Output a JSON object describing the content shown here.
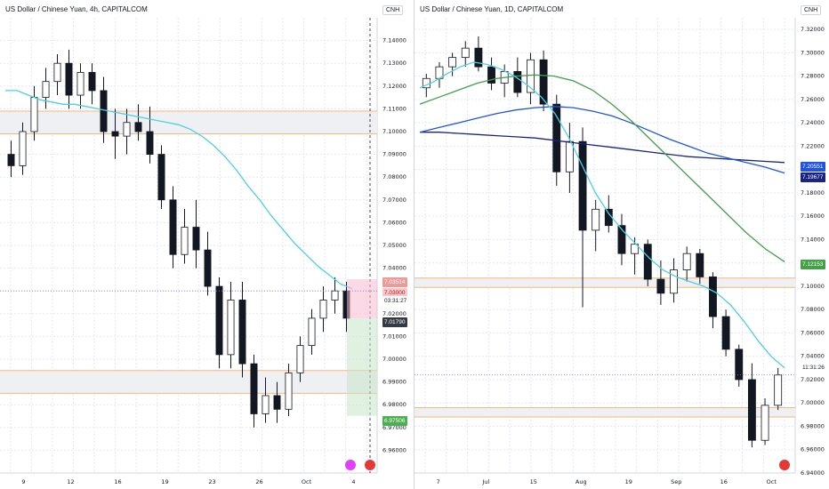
{
  "chart_data": [
    {
      "type": "candlestick",
      "title": "US Dollar / Chinese Yuan, 4h, CAPITALCOM",
      "symbol": "CNH",
      "ylim": [
        6.95,
        7.15
      ],
      "yticks": [
        "7.14000",
        "7.13000",
        "7.12000",
        "7.11000",
        "7.10000",
        "7.09000",
        "7.08000",
        "7.07000",
        "7.06000",
        "7.05000",
        "7.04000",
        "7.03000",
        "7.02000",
        "7.01000",
        "7.00000",
        "6.99000",
        "6.98000",
        "6.97000",
        "6.96000"
      ],
      "xticks": [
        "9",
        "12",
        "16",
        "19",
        "23",
        "26",
        "Oct",
        "4"
      ],
      "badges": {
        "red_price": "7.03514",
        "pink_price": "7.03000",
        "time": "03:31:27",
        "dark_price": "7.01790",
        "green_price": "6.97506"
      },
      "zones": [
        {
          "from": 7.099,
          "to": 7.109
        },
        {
          "from": 6.985,
          "to": 6.995
        }
      ],
      "ma": [
        7.118,
        7.118,
        7.116,
        7.114,
        7.113,
        7.112,
        7.112,
        7.111,
        7.11,
        7.109,
        7.108,
        7.107,
        7.106,
        7.105,
        7.104,
        7.103,
        7.101,
        7.098,
        7.094,
        7.089,
        7.083,
        7.076,
        7.07,
        7.063,
        7.057,
        7.051,
        7.046,
        7.041,
        7.037,
        7.033,
        7.031
      ],
      "candles": [
        {
          "o": 7.09,
          "h": 7.096,
          "l": 7.08,
          "c": 7.085
        },
        {
          "o": 7.085,
          "h": 7.104,
          "l": 7.081,
          "c": 7.1
        },
        {
          "o": 7.1,
          "h": 7.12,
          "l": 7.096,
          "c": 7.115
        },
        {
          "o": 7.115,
          "h": 7.128,
          "l": 7.11,
          "c": 7.122
        },
        {
          "o": 7.122,
          "h": 7.134,
          "l": 7.116,
          "c": 7.13
        },
        {
          "o": 7.13,
          "h": 7.136,
          "l": 7.11,
          "c": 7.116
        },
        {
          "o": 7.116,
          "h": 7.13,
          "l": 7.11,
          "c": 7.126
        },
        {
          "o": 7.126,
          "h": 7.13,
          "l": 7.112,
          "c": 7.118
        },
        {
          "o": 7.118,
          "h": 7.124,
          "l": 7.095,
          "c": 7.1
        },
        {
          "o": 7.1,
          "h": 7.11,
          "l": 7.088,
          "c": 7.098
        },
        {
          "o": 7.098,
          "h": 7.11,
          "l": 7.09,
          "c": 7.104
        },
        {
          "o": 7.104,
          "h": 7.112,
          "l": 7.096,
          "c": 7.1
        },
        {
          "o": 7.1,
          "h": 7.111,
          "l": 7.086,
          "c": 7.09
        },
        {
          "o": 7.09,
          "h": 7.094,
          "l": 7.066,
          "c": 7.07
        },
        {
          "o": 7.07,
          "h": 7.076,
          "l": 7.04,
          "c": 7.046
        },
        {
          "o": 7.046,
          "h": 7.066,
          "l": 7.042,
          "c": 7.058
        },
        {
          "o": 7.058,
          "h": 7.07,
          "l": 7.04,
          "c": 7.048
        },
        {
          "o": 7.048,
          "h": 7.056,
          "l": 7.028,
          "c": 7.032
        },
        {
          "o": 7.032,
          "h": 7.036,
          "l": 6.996,
          "c": 7.002
        },
        {
          "o": 7.002,
          "h": 7.034,
          "l": 6.996,
          "c": 7.026
        },
        {
          "o": 7.026,
          "h": 7.034,
          "l": 6.992,
          "c": 6.998
        },
        {
          "o": 6.998,
          "h": 7.002,
          "l": 6.97,
          "c": 6.976
        },
        {
          "o": 6.976,
          "h": 6.992,
          "l": 6.972,
          "c": 6.984
        },
        {
          "o": 6.984,
          "h": 6.99,
          "l": 6.972,
          "c": 6.978
        },
        {
          "o": 6.978,
          "h": 6.998,
          "l": 6.975,
          "c": 6.994
        },
        {
          "o": 6.994,
          "h": 7.01,
          "l": 6.99,
          "c": 7.006
        },
        {
          "o": 7.006,
          "h": 7.022,
          "l": 7.002,
          "c": 7.018
        },
        {
          "o": 7.018,
          "h": 7.032,
          "l": 7.012,
          "c": 7.026
        },
        {
          "o": 7.026,
          "h": 7.036,
          "l": 7.02,
          "c": 7.03
        },
        {
          "o": 7.03,
          "h": 7.034,
          "l": 7.012,
          "c": 7.018
        }
      ]
    },
    {
      "type": "candlestick",
      "title": "US Dollar / Chinese Yuan, 1D, CAPITALCOM",
      "symbol": "CNH",
      "ylim": [
        6.94,
        7.33
      ],
      "yticks": [
        "7.32000",
        "7.30000",
        "7.28000",
        "7.26000",
        "7.24000",
        "7.22000",
        "7.20000",
        "7.18000",
        "7.16000",
        "7.14000",
        "7.12000",
        "7.10000",
        "7.08000",
        "7.06000",
        "7.04000",
        "7.02000",
        "7.00000",
        "6.98000",
        "6.96000",
        "6.94000"
      ],
      "xticks": [
        "7",
        "Jul",
        "15",
        "Aug",
        "19",
        "Sep",
        "16",
        "Oct"
      ],
      "badges": {
        "blue_price": "7.20551",
        "navy_price": "7.19677",
        "time": "11:31:26",
        "green_price": "7.12153"
      },
      "zones": [
        {
          "from": 7.099,
          "to": 7.107
        },
        {
          "from": 6.988,
          "to": 6.996
        }
      ],
      "ma_cyan": [
        7.27,
        7.275,
        7.282,
        7.288,
        7.292,
        7.29,
        7.286,
        7.28,
        7.272,
        7.262,
        7.248,
        7.228,
        7.204,
        7.18,
        7.162,
        7.148,
        7.136,
        7.124,
        7.114,
        7.108,
        7.104,
        7.1,
        7.094,
        7.084,
        7.07,
        7.054,
        7.04,
        7.03
      ],
      "ma_green": [
        7.256,
        7.262,
        7.268,
        7.274,
        7.278,
        7.28,
        7.281,
        7.28,
        7.276,
        7.268,
        7.256,
        7.242,
        7.226,
        7.21,
        7.194,
        7.178,
        7.162,
        7.146,
        7.132,
        7.121
      ],
      "ma_blue": [
        7.232,
        7.236,
        7.24,
        7.244,
        7.248,
        7.251,
        7.253,
        7.254,
        7.253,
        7.25,
        7.246,
        7.24,
        7.233,
        7.226,
        7.22,
        7.214,
        7.21,
        7.206,
        7.202,
        7.197
      ],
      "ma_navy": [
        7.232,
        7.232,
        7.231,
        7.23,
        7.229,
        7.228,
        7.227,
        7.225,
        7.223,
        7.221,
        7.219,
        7.217,
        7.215,
        7.213,
        7.211,
        7.21,
        7.209,
        7.208,
        7.207,
        7.206
      ],
      "candles": [
        {
          "o": 7.27,
          "h": 7.282,
          "l": 7.262,
          "c": 7.278
        },
        {
          "o": 7.278,
          "h": 7.292,
          "l": 7.27,
          "c": 7.288
        },
        {
          "o": 7.288,
          "h": 7.3,
          "l": 7.28,
          "c": 7.296
        },
        {
          "o": 7.296,
          "h": 7.31,
          "l": 7.288,
          "c": 7.304
        },
        {
          "o": 7.304,
          "h": 7.314,
          "l": 7.284,
          "c": 7.288
        },
        {
          "o": 7.288,
          "h": 7.296,
          "l": 7.268,
          "c": 7.274
        },
        {
          "o": 7.274,
          "h": 7.29,
          "l": 7.262,
          "c": 7.284
        },
        {
          "o": 7.284,
          "h": 7.296,
          "l": 7.262,
          "c": 7.266
        },
        {
          "o": 7.266,
          "h": 7.3,
          "l": 7.256,
          "c": 7.294
        },
        {
          "o": 7.294,
          "h": 7.302,
          "l": 7.25,
          "c": 7.256
        },
        {
          "o": 7.256,
          "h": 7.264,
          "l": 7.186,
          "c": 7.198
        },
        {
          "o": 7.198,
          "h": 7.24,
          "l": 7.18,
          "c": 7.224
        },
        {
          "o": 7.224,
          "h": 7.236,
          "l": 7.082,
          "c": 7.148
        },
        {
          "o": 7.148,
          "h": 7.174,
          "l": 7.13,
          "c": 7.166
        },
        {
          "o": 7.166,
          "h": 7.178,
          "l": 7.146,
          "c": 7.152
        },
        {
          "o": 7.152,
          "h": 7.162,
          "l": 7.118,
          "c": 7.128
        },
        {
          "o": 7.128,
          "h": 7.142,
          "l": 7.11,
          "c": 7.136
        },
        {
          "o": 7.136,
          "h": 7.14,
          "l": 7.1,
          "c": 7.106
        },
        {
          "o": 7.106,
          "h": 7.122,
          "l": 7.084,
          "c": 7.094
        },
        {
          "o": 7.094,
          "h": 7.124,
          "l": 7.086,
          "c": 7.114
        },
        {
          "o": 7.114,
          "h": 7.134,
          "l": 7.104,
          "c": 7.128
        },
        {
          "o": 7.128,
          "h": 7.132,
          "l": 7.102,
          "c": 7.108
        },
        {
          "o": 7.108,
          "h": 7.112,
          "l": 7.064,
          "c": 7.074
        },
        {
          "o": 7.074,
          "h": 7.08,
          "l": 7.04,
          "c": 7.046
        },
        {
          "o": 7.046,
          "h": 7.05,
          "l": 7.014,
          "c": 7.02
        },
        {
          "o": 7.02,
          "h": 7.034,
          "l": 6.962,
          "c": 6.968
        },
        {
          "o": 6.968,
          "h": 7.004,
          "l": 6.964,
          "c": 6.998
        },
        {
          "o": 6.998,
          "h": 7.03,
          "l": 6.994,
          "c": 7.024
        }
      ]
    }
  ]
}
